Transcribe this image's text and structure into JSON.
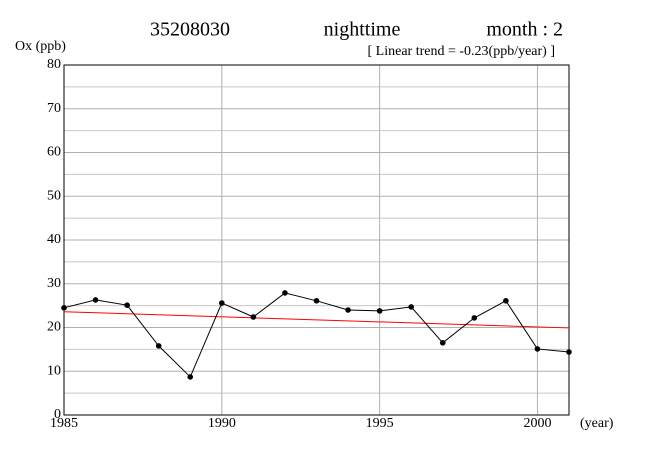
{
  "chart_data": {
    "type": "line",
    "station": "35208030",
    "period": "nighttime",
    "month": "month : 2",
    "subtitle": "[ Linear trend = -0.23(ppb/year) ]",
    "ylabel": "Ox (ppb)",
    "xlabel": "(year)",
    "x": [
      1985,
      1986,
      1987,
      1988,
      1989,
      1990,
      1991,
      1992,
      1993,
      1994,
      1995,
      1996,
      1997,
      1998,
      1999,
      2000,
      2001
    ],
    "series": [
      {
        "color": "#000000",
        "values": [
          24.5,
          26.3,
          25.1,
          15.8,
          8.7,
          25.6,
          22.4,
          27.9,
          26.1,
          24.0,
          23.8,
          24.7,
          16.5,
          22.2,
          26.1,
          15.1,
          14.4
        ]
      }
    ],
    "trend": {
      "color": "#ff0000",
      "x": [
        1985,
        2001
      ],
      "values": [
        23.6,
        19.9
      ]
    },
    "xlim": [
      1985,
      2001
    ],
    "xticks": [
      1985,
      1990,
      1995,
      2000
    ],
    "ylim": [
      0,
      80
    ],
    "yticks": [
      0,
      10,
      20,
      30,
      40,
      50,
      60,
      70,
      80
    ],
    "yminor": [
      5,
      15,
      25,
      35,
      45,
      55,
      65,
      75
    ],
    "grid": true
  }
}
